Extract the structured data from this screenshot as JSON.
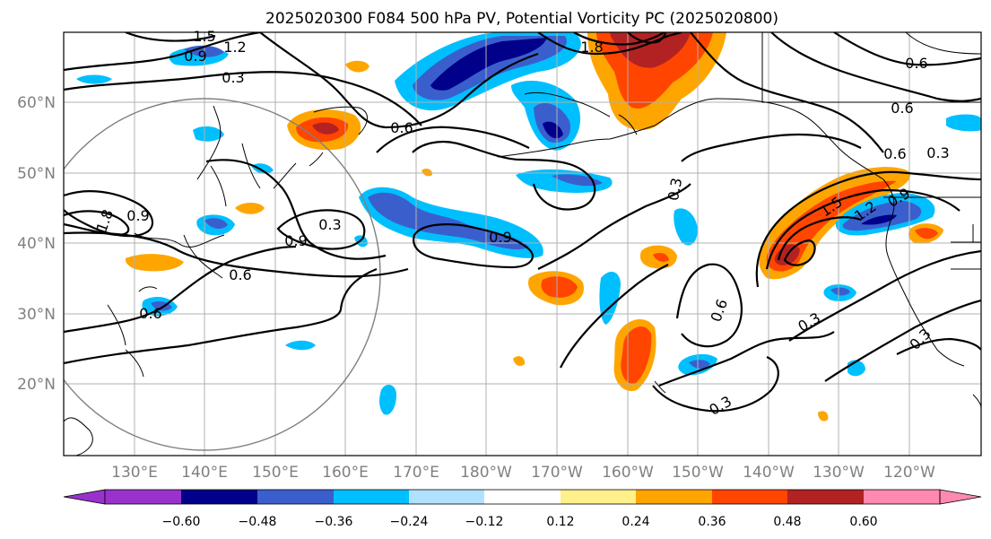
{
  "title": "2025020300 F084 500 hPa PV, Potential Vorticity PC (2025020800)",
  "map": {
    "lat_labels": [
      "60°N",
      "50°N",
      "40°N",
      "30°N",
      "20°N"
    ],
    "lon_labels": [
      "130°E",
      "140°E",
      "150°E",
      "160°E",
      "170°E",
      "180°W",
      "170°W",
      "160°W",
      "150°W",
      "140°W",
      "130°W",
      "120°W"
    ],
    "grid": true,
    "features": [
      "coastlines",
      "country-borders",
      "state-borders",
      "range-circle"
    ]
  },
  "contour_labels": [
    "1.5",
    "1.2",
    "0.9",
    "0.3",
    "0.6",
    "1.8",
    "0.6",
    "0.6",
    "0.6",
    "0.3",
    "0.3",
    "0.9",
    "0.9",
    "1.8",
    "0.9",
    "0.6",
    "0.6",
    "0.3",
    "0.6",
    "0.3",
    "0.3",
    "1.5",
    "1.2",
    "0.9",
    "0.3"
  ],
  "colorbar": {
    "ticks": [
      "−0.60",
      "−0.48",
      "−0.36",
      "−0.24",
      "−0.12",
      "0.12",
      "0.24",
      "0.36",
      "0.48",
      "0.60"
    ],
    "colors": [
      "#9932cc",
      "#00008b",
      "#3a5fcd",
      "#00bfff",
      "#b0e2ff",
      "#ffffff",
      "#fff08c",
      "#ffa500",
      "#ff4500",
      "#b22222",
      "#ff89b0"
    ],
    "extend": "both"
  },
  "fill_colors": {
    "neg_strong": "#00008b",
    "neg_mid": "#3a5fcd",
    "neg_weak": "#00bfff",
    "pos_weak": "#ffa500",
    "pos_mid": "#ff4500",
    "pos_strong": "#b22222",
    "pos_light": "#fff08c"
  }
}
